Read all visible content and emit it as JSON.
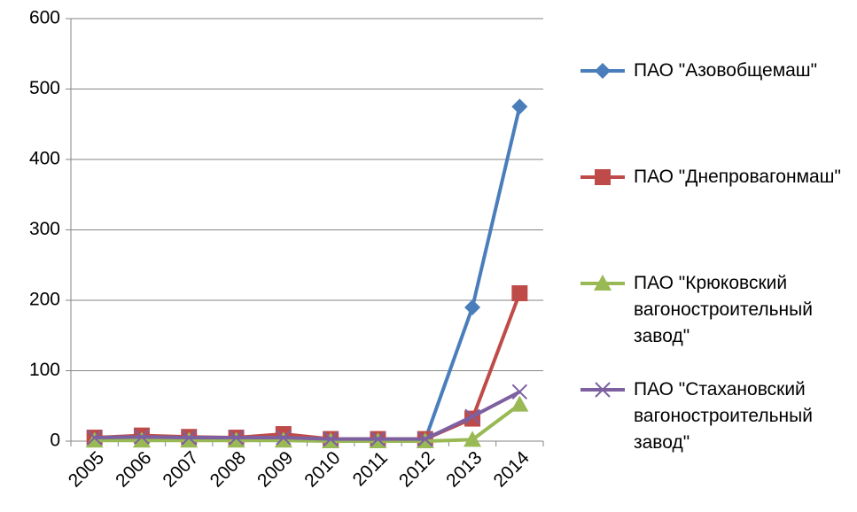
{
  "chart_data": {
    "type": "line",
    "categories": [
      "2005",
      "2006",
      "2007",
      "2008",
      "2009",
      "2010",
      "2011",
      "2012",
      "2013",
      "2014"
    ],
    "series": [
      {
        "name": "ПАО \"Азовобщемаш\"",
        "color": "#4a7ebb",
        "marker": "diamond",
        "values": [
          3,
          5,
          4,
          4,
          5,
          2,
          2,
          2,
          190,
          475
        ]
      },
      {
        "name": "ПАО \"Днепровагонмаш\"",
        "color": "#be4b48",
        "marker": "square",
        "values": [
          5,
          8,
          6,
          5,
          10,
          3,
          3,
          3,
          32,
          210
        ]
      },
      {
        "name": "ПАО \"Крюковский вагоностроительный завод\"",
        "color": "#98b954",
        "marker": "triangle",
        "values": [
          1,
          1,
          1,
          1,
          1,
          0,
          0,
          0,
          2,
          52
        ]
      },
      {
        "name": "ПАО \"Стахановский вагоностроительный завод\"",
        "color": "#7d60a0",
        "marker": "x",
        "values": [
          5,
          6,
          5,
          5,
          5,
          3,
          3,
          3,
          35,
          70
        ]
      }
    ],
    "ylim": [
      0,
      600
    ],
    "yticks": [
      0,
      100,
      200,
      300,
      400,
      500,
      600
    ],
    "grid": true,
    "legend": "right"
  }
}
